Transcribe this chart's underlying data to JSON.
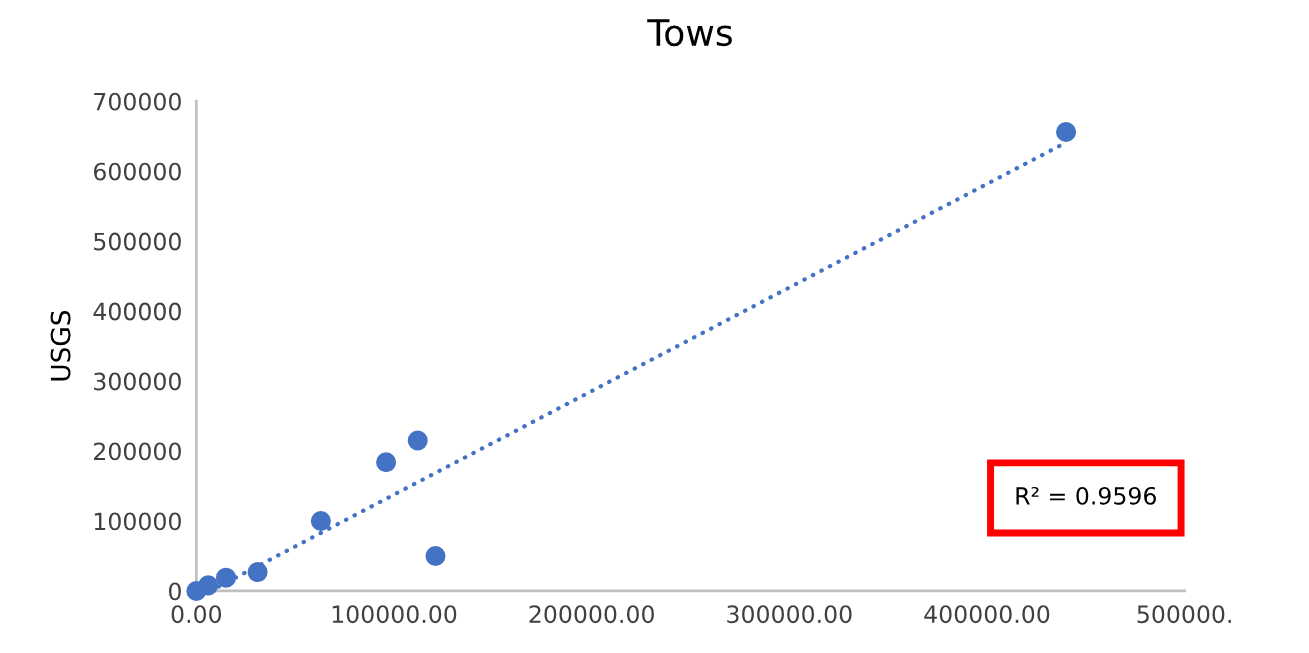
{
  "chart_data": {
    "type": "scatter",
    "title": "Tows",
    "ylabel": "USGS",
    "series": [
      {
        "color": "#4472c4",
        "marker": "circle",
        "x": [
          0,
          6000,
          15000,
          31000,
          63000,
          96000,
          112000,
          121000,
          440000
        ],
        "values": [
          0,
          8000,
          19000,
          27000,
          100000,
          184000,
          215000,
          50000,
          656000
        ]
      },
      {
        "type": "line",
        "color": "#4472c4",
        "line_style": "dotted",
        "x": [
          7000,
          440000
        ],
        "values": [
          0,
          641000
        ]
      }
    ],
    "annotations": [
      "R² = 0.9596"
    ],
    "xlim": [
      0,
      500000
    ],
    "ylim": [
      0,
      700000
    ],
    "xticks": [
      {
        "value": 0,
        "label": "0.00"
      },
      {
        "value": 100000,
        "label": "100000.00"
      },
      {
        "value": 200000,
        "label": "200000.00"
      },
      {
        "value": 300000,
        "label": "300000.00"
      },
      {
        "value": 400000,
        "label": "400000.00"
      },
      {
        "value": 500000,
        "label": "500000."
      }
    ],
    "yticks": [
      0,
      100000,
      200000,
      300000,
      400000,
      500000,
      600000,
      700000
    ],
    "grid": false,
    "legend": false
  }
}
